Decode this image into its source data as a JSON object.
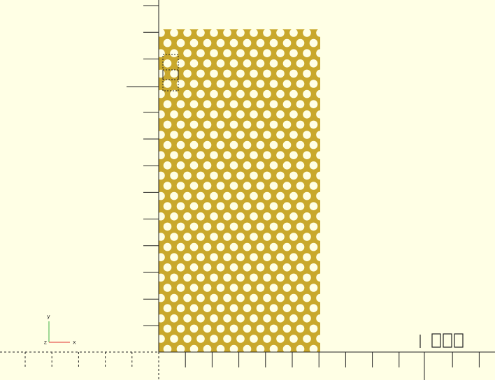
{
  "axes_indicator": {
    "x": "x",
    "y": "y",
    "z": "z"
  }
}
